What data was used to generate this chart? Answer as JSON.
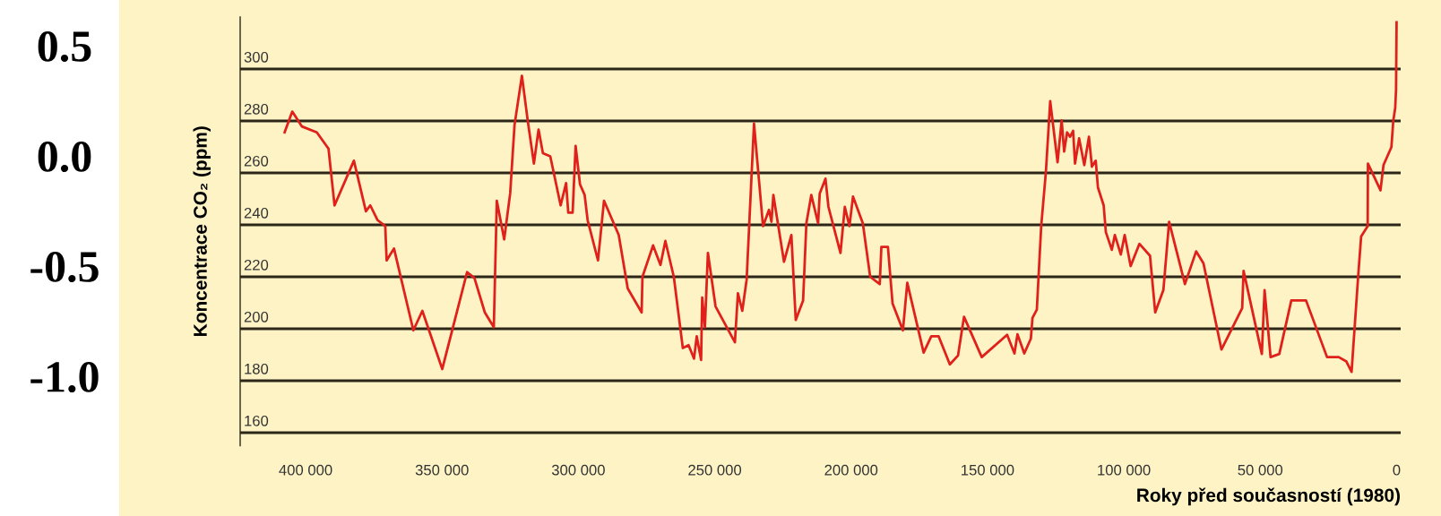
{
  "chart_data": {
    "type": "line",
    "xlabel": "Roky před současností (1980)",
    "ylabel": "Koncentrace CO₂ (ppm)",
    "series": [
      {
        "color": "#e0201b",
        "x": [
          407700,
          404900,
          401400,
          395900,
          391600,
          389400,
          382300,
          377900,
          376300,
          373600,
          370800,
          370300,
          367600,
          360500,
          357200,
          349900,
          340800,
          338100,
          334300,
          331000,
          329900,
          327200,
          325000,
          323400,
          320700,
          318500,
          316300,
          314600,
          313000,
          310300,
          306500,
          304500,
          303700,
          302100,
          301000,
          299400,
          297700,
          296600,
          292800,
          290600,
          285200,
          281900,
          276800,
          276500,
          272600,
          269900,
          268100,
          265000,
          261700,
          259600,
          257600,
          256600,
          255000,
          254600,
          253600,
          252500,
          249700,
          242600,
          241500,
          239900,
          238300,
          235600,
          232300,
          230100,
          229200,
          228500,
          224600,
          221900,
          220300,
          217600,
          216400,
          214600,
          212100,
          211500,
          209400,
          208300,
          203900,
          202300,
          200600,
          199300,
          195700,
          193000,
          189500,
          188900,
          186500,
          184800,
          181000,
          179400,
          173400,
          170600,
          167900,
          163800,
          160800,
          158600,
          152100,
          142800,
          140100,
          139000,
          136500,
          134100,
          133500,
          131900,
          130300,
          128600,
          127000,
          124300,
          122800,
          121900,
          120800,
          119700,
          118600,
          117900,
          116400,
          114500,
          112800,
          111700,
          110300,
          109500,
          107400,
          106600,
          104400,
          103300,
          101100,
          99700,
          97500,
          94300,
          90400,
          88500,
          85500,
          83400,
          77600,
          73500,
          70800,
          64200,
          56600,
          56100,
          49400,
          48400,
          46200,
          43000,
          38600,
          33200,
          25500,
          23300,
          21200,
          18400,
          16500,
          14100,
          13000,
          10600,
          10500,
          5900,
          4800,
          1900,
          1200,
          500,
          200,
          0
        ],
        "values": [
          275.6,
          283.6,
          277.9,
          275.6,
          269.3,
          247.5,
          264.7,
          245.2,
          247.5,
          241.8,
          239.5,
          226.3,
          230.9,
          199.4,
          206.9,
          184.5,
          221.8,
          219.5,
          206.3,
          200.6,
          249.3,
          234.4,
          252.1,
          278.5,
          297.4,
          279.6,
          263.6,
          276.7,
          267.6,
          266.4,
          247.5,
          256.1,
          244.7,
          244.7,
          270.4,
          255.6,
          251.5,
          241.8,
          226.3,
          249.3,
          236.1,
          215.5,
          206.3,
          220.0,
          232.1,
          224.6,
          233.8,
          220.0,
          192.6,
          193.7,
          188.5,
          197.1,
          188.0,
          212.0,
          200.6,
          229.2,
          208.6,
          194.8,
          213.7,
          206.9,
          218.9,
          279.0,
          239.5,
          245.8,
          241.2,
          251.5,
          225.8,
          236.1,
          203.4,
          210.9,
          240.6,
          251.5,
          240.6,
          252.1,
          257.8,
          246.9,
          229.2,
          246.9,
          239.5,
          250.9,
          240.6,
          220.0,
          217.2,
          231.5,
          231.5,
          209.7,
          199.4,
          217.7,
          190.8,
          197.1,
          197.1,
          186.3,
          189.7,
          204.6,
          189.1,
          197.7,
          190.5,
          197.9,
          190.5,
          196.2,
          204.2,
          207.4,
          239.5,
          260.1,
          287.6,
          264.1,
          280.2,
          268.2,
          275.6,
          273.9,
          276.2,
          263.6,
          273.3,
          263.0,
          273.9,
          262.4,
          264.7,
          254.4,
          247.5,
          237.2,
          230.4,
          236.1,
          228.6,
          236.1,
          224.1,
          232.7,
          228.1,
          206.3,
          214.9,
          241.2,
          217.2,
          229.8,
          225.2,
          192.0,
          208.0,
          222.3,
          190.3,
          214.9,
          189.1,
          190.3,
          210.9,
          210.9,
          189.1,
          189.1,
          189.1,
          187.4,
          183.4,
          220.0,
          235.5,
          239.5,
          263.6,
          253.3,
          263.0,
          269.9,
          280.2,
          285.0,
          292.0,
          318.0
        ]
      }
    ],
    "xlim": [
      424000,
      -1500
    ],
    "xticks": [
      {
        "value": 400000,
        "label": "400 000"
      },
      {
        "value": 350000,
        "label": "350 000"
      },
      {
        "value": 300000,
        "label": "300 000"
      },
      {
        "value": 250000,
        "label": "250 000"
      },
      {
        "value": 200000,
        "label": "200 000"
      },
      {
        "value": 150000,
        "label": "150 000"
      },
      {
        "value": 100000,
        "label": "100 000"
      },
      {
        "value": 50000,
        "label": "50 000"
      },
      0
    ],
    "ylim": [
      155,
      320
    ],
    "yticks": [
      160,
      180,
      200,
      220,
      240,
      260,
      280,
      300
    ],
    "y2lim": [
      -1.315,
      0.63
    ],
    "y2ticks": [
      {
        "value": 0.5,
        "label": "0.5"
      },
      {
        "value": 0.0,
        "label": "0.0"
      },
      {
        "value": -0.5,
        "label": "-0.5"
      },
      {
        "value": -1.0,
        "label": "-1.0"
      }
    ],
    "grid": "y"
  }
}
